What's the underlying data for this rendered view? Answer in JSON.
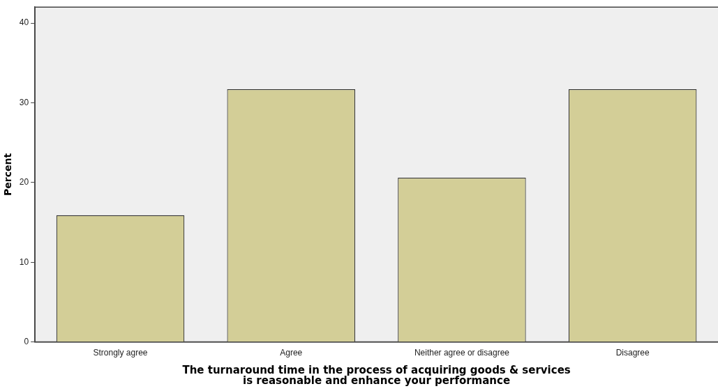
{
  "chart_data": {
    "type": "bar",
    "xlabel": "The turnaround time in the process of acquiring goods & services is reasonable and enhance your performance",
    "ylabel": "Percent",
    "categories": [
      "Strongly agree",
      "Agree",
      "Neither agree or disagree",
      "Disagree"
    ],
    "values": [
      15.9,
      31.7,
      20.6,
      31.7
    ],
    "color": "#d3ce97",
    "ylim": [
      0,
      42
    ],
    "yticks": [
      0,
      10,
      20,
      30,
      40
    ],
    "grid": false,
    "legend": false
  }
}
